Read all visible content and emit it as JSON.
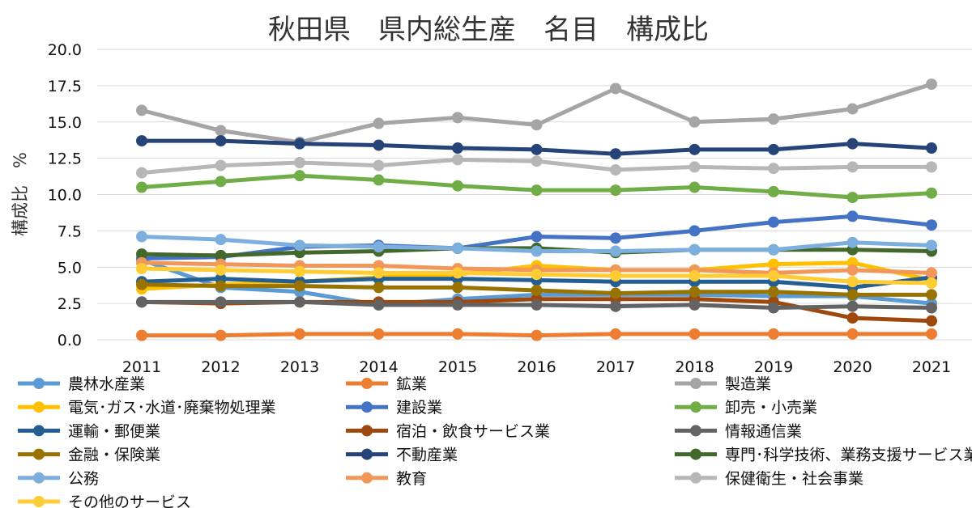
{
  "chart_data": {
    "type": "line",
    "title": "秋田県　県内総生産　名目　構成比",
    "xlabel": "",
    "ylabel": "構成比　%",
    "ylim": [
      0,
      20
    ],
    "yticks": [
      "20.0",
      "17.5",
      "15.0",
      "12.5",
      "10.0",
      "7.5",
      "5.0",
      "2.5",
      "0.0"
    ],
    "grid": true,
    "legend_position": "bottom",
    "categories": [
      "2011",
      "2012",
      "2013",
      "2014",
      "2015",
      "2016",
      "2017",
      "2018",
      "2019",
      "2020",
      "2021"
    ],
    "series": [
      {
        "name": "農林水産業",
        "color": "#5b9bd5",
        "values": [
          5.5,
          3.6,
          3.3,
          2.4,
          2.8,
          3.1,
          3.1,
          3.1,
          3.0,
          3.0,
          2.5
        ]
      },
      {
        "name": "鉱業",
        "color": "#ed7d31",
        "values": [
          0.3,
          0.3,
          0.4,
          0.4,
          0.4,
          0.3,
          0.4,
          0.4,
          0.4,
          0.4,
          0.4
        ]
      },
      {
        "name": "製造業",
        "color": "#a5a5a5",
        "values": [
          15.8,
          14.4,
          13.6,
          14.9,
          15.3,
          14.8,
          17.3,
          15.0,
          15.2,
          15.9,
          17.6
        ]
      },
      {
        "name": "電気･ガス･水道･廃棄物処理業",
        "color": "#ffc000",
        "values": [
          3.5,
          3.8,
          4.0,
          4.3,
          4.5,
          5.1,
          4.8,
          4.8,
          5.2,
          5.3,
          4.1
        ]
      },
      {
        "name": "建設業",
        "color": "#4472c4",
        "values": [
          5.6,
          5.7,
          6.4,
          6.5,
          6.3,
          7.1,
          7.0,
          7.5,
          8.1,
          8.5,
          7.9
        ]
      },
      {
        "name": "卸売・小売業",
        "color": "#70ad47",
        "values": [
          10.5,
          10.9,
          11.3,
          11.0,
          10.6,
          10.3,
          10.3,
          10.5,
          10.2,
          9.8,
          10.1
        ]
      },
      {
        "name": "運輸・郵便業",
        "color": "#255e91",
        "values": [
          4.0,
          4.2,
          4.0,
          4.2,
          4.2,
          4.1,
          4.0,
          4.0,
          4.0,
          3.6,
          4.3
        ]
      },
      {
        "name": "宿泊・飲食サービス業",
        "color": "#9e480e",
        "values": [
          2.6,
          2.5,
          2.6,
          2.6,
          2.6,
          2.8,
          2.8,
          2.8,
          2.6,
          1.5,
          1.3
        ]
      },
      {
        "name": "情報通信業",
        "color": "#636363",
        "values": [
          2.6,
          2.6,
          2.6,
          2.4,
          2.4,
          2.4,
          2.3,
          2.4,
          2.2,
          2.3,
          2.2
        ]
      },
      {
        "name": "金融・保険業",
        "color": "#997300",
        "values": [
          3.8,
          3.7,
          3.7,
          3.6,
          3.6,
          3.4,
          3.2,
          3.3,
          3.3,
          3.1,
          3.1
        ]
      },
      {
        "name": "不動産業",
        "color": "#264478",
        "values": [
          13.7,
          13.7,
          13.5,
          13.4,
          13.2,
          13.1,
          12.8,
          13.1,
          13.1,
          13.5,
          13.2
        ]
      },
      {
        "name": "専門･科学技術、業務支援サービス業",
        "color": "#43682b",
        "values": [
          5.9,
          5.8,
          6.0,
          6.1,
          6.3,
          6.3,
          6.0,
          6.2,
          6.2,
          6.2,
          6.1
        ]
      },
      {
        "name": "公務",
        "color": "#7cafdd",
        "values": [
          7.1,
          6.9,
          6.5,
          6.4,
          6.3,
          6.1,
          6.1,
          6.2,
          6.2,
          6.7,
          6.5
        ]
      },
      {
        "name": "教育",
        "color": "#f1975a",
        "values": [
          5.3,
          5.2,
          5.1,
          5.1,
          4.9,
          4.8,
          4.8,
          4.8,
          4.6,
          4.8,
          4.6
        ]
      },
      {
        "name": "保健衛生・社会事業",
        "color": "#b7b7b7",
        "values": [
          11.5,
          12.0,
          12.2,
          12.0,
          12.4,
          12.3,
          11.7,
          11.9,
          11.8,
          11.9,
          11.9
        ]
      },
      {
        "name": "その他のサービス",
        "color": "#ffcd33",
        "values": [
          4.9,
          4.8,
          4.7,
          4.6,
          4.6,
          4.5,
          4.4,
          4.4,
          4.4,
          4.0,
          3.9
        ]
      }
    ]
  }
}
